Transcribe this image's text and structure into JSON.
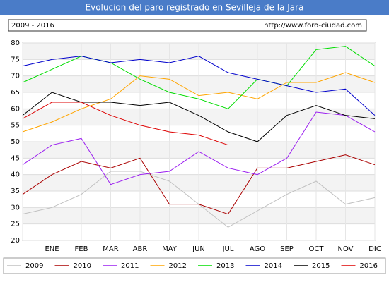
{
  "chart_data": {
    "type": "line",
    "title": "Evolucion del paro registrado en Sevilleja de la Jara",
    "subtitle": "2009 - 2016",
    "source": "http://www.foro-ciudad.com",
    "categories": [
      null,
      "ENE",
      "FEB",
      "MAR",
      "ABR",
      "MAY",
      "JUN",
      "JUL",
      "AGO",
      "SEP",
      "OCT",
      "NOV",
      "DIC"
    ],
    "ylim": [
      20,
      80
    ],
    "yticks": [
      20,
      25,
      30,
      35,
      40,
      45,
      50,
      55,
      60,
      65,
      70,
      75,
      80
    ],
    "grid": true,
    "legend": "bottom",
    "series": [
      {
        "name": "2009",
        "color": "#c0c0c0",
        "values": [
          28,
          30,
          34,
          41,
          41,
          38,
          31,
          24,
          29,
          34,
          38,
          31,
          33
        ]
      },
      {
        "name": "2010",
        "color": "#aa0000",
        "values": [
          34,
          40,
          44,
          42,
          45,
          31,
          31,
          28,
          42,
          42,
          44,
          46,
          43
        ]
      },
      {
        "name": "2011",
        "color": "#9b1ff0",
        "values": [
          43,
          49,
          51,
          37,
          40,
          41,
          47,
          42,
          40,
          45,
          59,
          58,
          53
        ]
      },
      {
        "name": "2012",
        "color": "#ffa500",
        "values": [
          53,
          56,
          60,
          63,
          70,
          69,
          64,
          65,
          63,
          68,
          68,
          71,
          68
        ]
      },
      {
        "name": "2013",
        "color": "#00dd00",
        "values": [
          68,
          72,
          76,
          74,
          69,
          65,
          63,
          60,
          69,
          67,
          78,
          79,
          73
        ]
      },
      {
        "name": "2014",
        "color": "#0000cc",
        "values": [
          73,
          75,
          76,
          74,
          75,
          74,
          76,
          71,
          69,
          67,
          65,
          66,
          58
        ]
      },
      {
        "name": "2015",
        "color": "#000000",
        "values": [
          58,
          65,
          62,
          62,
          61,
          62,
          58,
          53,
          50,
          58,
          61,
          58,
          57
        ]
      },
      {
        "name": "2016",
        "color": "#dd0000",
        "values": [
          57,
          62,
          62,
          58,
          55,
          53,
          52,
          49,
          null,
          null,
          null,
          null,
          null
        ]
      }
    ]
  }
}
